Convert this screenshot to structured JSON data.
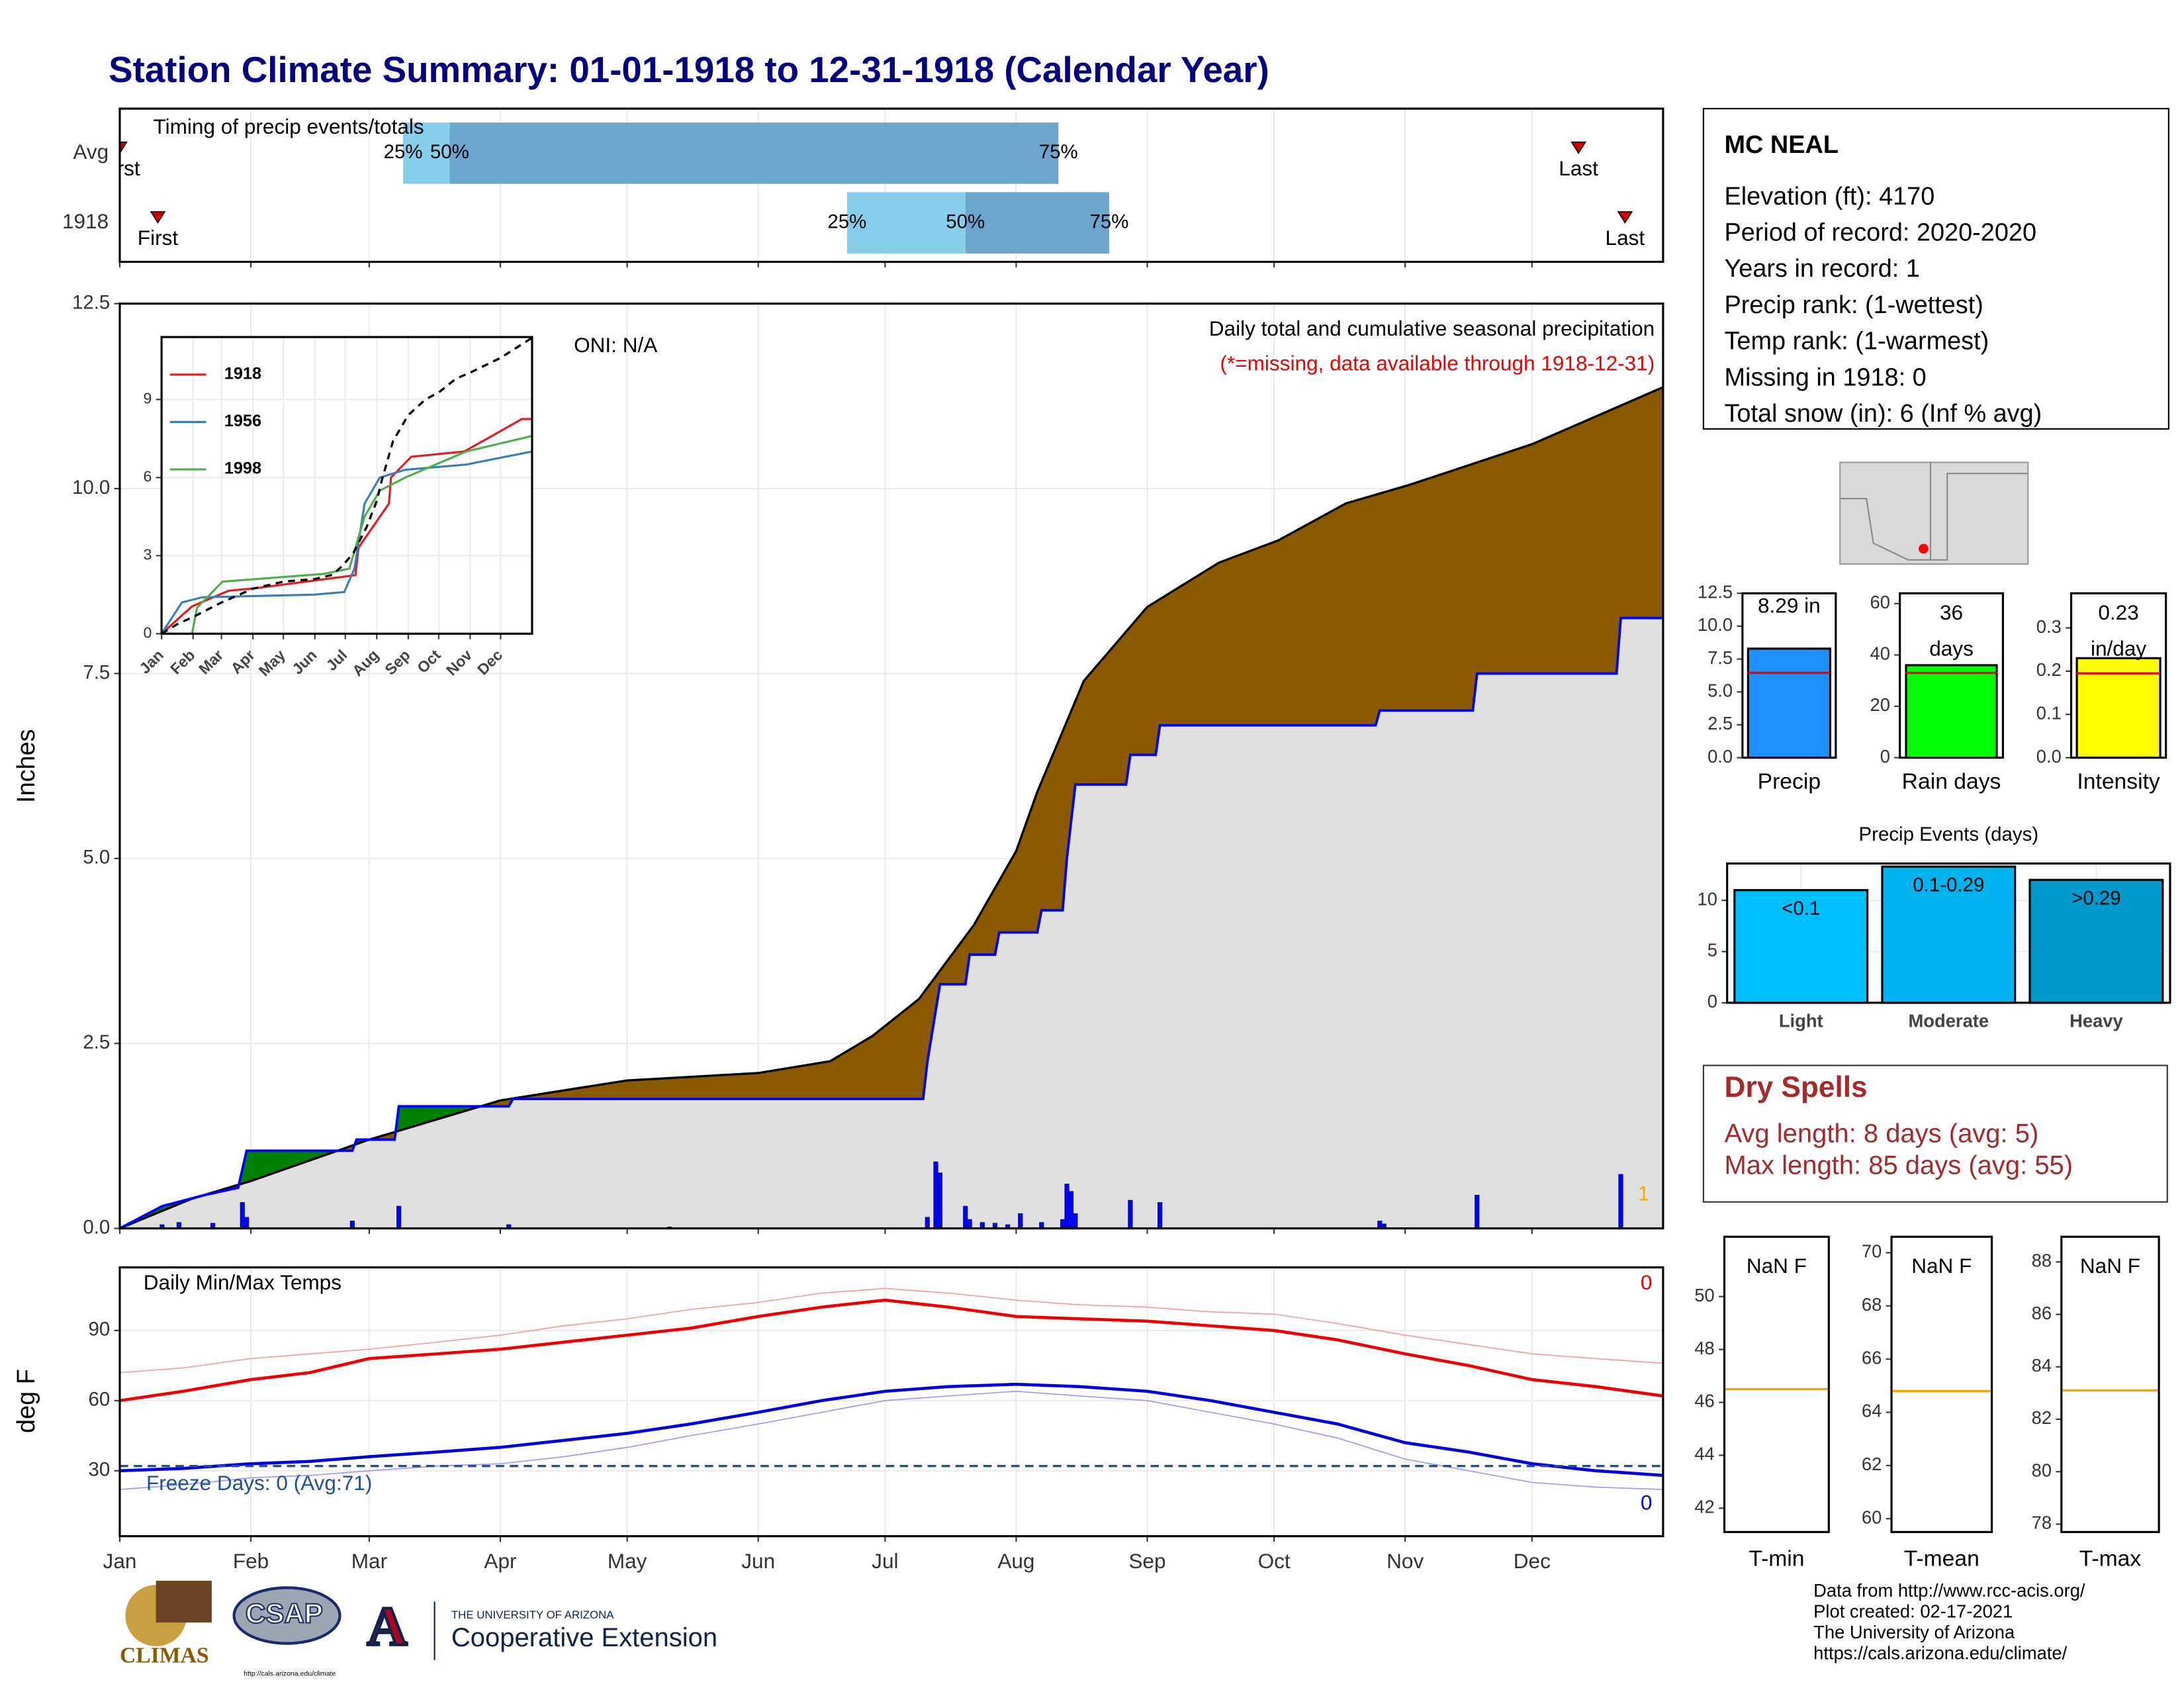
{
  "title": "Station Climate Summary: 01-01-1918 to 12-31-1918 (Calendar Year)",
  "station": {
    "name": "MC NEAL",
    "lines": [
      "Elevation (ft): 4170",
      "Period of record: 2020-2020",
      "Years in record: 1",
      "Precip rank:  (1-wettest)",
      "Temp rank:  (1-warmest)",
      "Missing in 1918: 0",
      "Total snow (in): 6 (Inf % avg)"
    ]
  },
  "dry_spells": {
    "title": "Dry Spells",
    "lines": [
      "Avg length: 8 days (avg: 5)",
      "Max length: 85 days (avg: 55)"
    ]
  },
  "credits": [
    "Data from http://www.rcc-acis.org/",
    "Plot created: 02-17-2021",
    "The University of Arizona",
    "https://cals.arizona.edu/climate/"
  ],
  "logos": {
    "climas": "CLIMAS",
    "csap": "CSAP",
    "csap_url": "http://cals.arizona.edu/climate",
    "ua": "THE UNIVERSITY OF ARIZONA",
    "coop": "Cooperative Extension"
  },
  "chart_data": [
    {
      "type": "timing",
      "title": "Timing of precip events/totals",
      "xlim": [
        0,
        365
      ],
      "rows": [
        {
          "name": "Avg",
          "first": 0,
          "q25": 67,
          "q50": 78,
          "q75": 222,
          "last": 345
        },
        {
          "name": "1918",
          "first": 9,
          "q25": 172,
          "q50": 200,
          "q75": 234,
          "last": 356
        }
      ],
      "marker_labels": {
        "first": "First",
        "last": "Last"
      },
      "quantile_labels": {
        "q25": "25%",
        "q50": "50%",
        "q75": "75%"
      },
      "colors": {
        "early": "#87ceeb",
        "late": "#6ca6cd",
        "marker": "#cc0000"
      }
    },
    {
      "type": "cumulative",
      "y_label": "Inches",
      "xlim": [
        0,
        365
      ],
      "ylim": [
        0,
        12.5
      ],
      "yticks": [
        {
          "value": 0,
          "label": "0.0"
        },
        {
          "value": 2.5,
          "label": "2.5"
        },
        {
          "value": 5,
          "label": "5.0"
        },
        {
          "value": 7.5,
          "label": "7.5"
        },
        {
          "value": 10,
          "label": "10.0"
        },
        {
          "value": 12.5,
          "label": "12.5"
        }
      ],
      "xticks": [
        0,
        31,
        59,
        90,
        120,
        151,
        181,
        212,
        243,
        273,
        304,
        334
      ],
      "grid": true,
      "oni": "ONI: N/A",
      "subtitle": "Daily total and cumulative seasonal precipitation",
      "note": "(*=missing, data available through 1918-12-31)",
      "snow_label": "1",
      "observed": {
        "color": "#0000ff",
        "x": [
          0,
          10,
          20,
          28,
          30,
          55,
          56,
          65,
          66,
          92,
          93,
          190,
          191,
          194,
          200,
          201,
          207,
          208,
          217,
          218,
          223,
          224,
          225,
          226,
          238,
          239,
          245,
          246,
          297,
          298,
          320,
          321,
          354,
          355,
          365
        ],
        "values": [
          0,
          0.3,
          0.45,
          0.55,
          1.05,
          1.05,
          1.2,
          1.2,
          1.65,
          1.65,
          1.75,
          1.75,
          2.25,
          3.3,
          3.3,
          3.7,
          3.7,
          4.0,
          4.0,
          4.3,
          4.3,
          5.0,
          5.5,
          6.0,
          6.0,
          6.4,
          6.4,
          6.8,
          6.8,
          7.0,
          7.0,
          7.5,
          7.5,
          8.25,
          8.25
        ]
      },
      "average": {
        "color": "#000000",
        "x": [
          0,
          17,
          31,
          59,
          90,
          120,
          151,
          168,
          178,
          189,
          202,
          212,
          217,
          228,
          243,
          260,
          274,
          290,
          305,
          334,
          365
        ],
        "values": [
          0,
          0.4,
          0.64,
          1.2,
          1.73,
          2.0,
          2.1,
          2.26,
          2.6,
          3.1,
          4.1,
          5.1,
          5.9,
          7.4,
          8.4,
          9.0,
          9.3,
          9.8,
          10.05,
          10.6,
          11.37
        ]
      },
      "daily": {
        "color": "#0000ff",
        "x": [
          10,
          14,
          22,
          29,
          30,
          55,
          66,
          92,
          130,
          191,
          193,
          194,
          200,
          201,
          204,
          207,
          210,
          213,
          218,
          223,
          224,
          225,
          226,
          239,
          246,
          298,
          299,
          321,
          355
        ],
        "values": [
          0.05,
          0.08,
          0.07,
          0.35,
          0.15,
          0.1,
          0.3,
          0.05,
          0.02,
          0.15,
          0.9,
          0.75,
          0.3,
          0.12,
          0.08,
          0.07,
          0.05,
          0.2,
          0.08,
          0.12,
          0.6,
          0.5,
          0.2,
          0.38,
          0.35,
          0.1,
          0.06,
          0.45,
          0.73
        ]
      },
      "colors": {
        "deficit": "#8b5a00",
        "surplus": "#008000",
        "base": "#e0e0e0"
      }
    },
    {
      "type": "line",
      "xlim": [
        0,
        365
      ],
      "ylim": [
        0,
        11.4
      ],
      "yticks": [
        0,
        3,
        6,
        9
      ],
      "xticks": [
        {
          "value": 0,
          "label": "Jan"
        },
        {
          "value": 31,
          "label": "Feb"
        },
        {
          "value": 59,
          "label": "Mar"
        },
        {
          "value": 90,
          "label": "Apr"
        },
        {
          "value": 120,
          "label": "May"
        },
        {
          "value": 151,
          "label": "Jun"
        },
        {
          "value": 181,
          "label": "Jul"
        },
        {
          "value": 212,
          "label": "Aug"
        },
        {
          "value": 243,
          "label": "Sep"
        },
        {
          "value": 273,
          "label": "Oct"
        },
        {
          "value": 304,
          "label": "Nov"
        },
        {
          "value": 334,
          "label": "Dec"
        }
      ],
      "series": [
        {
          "name": "1918",
          "color": "#e41a1c",
          "x": [
            0,
            30,
            66,
            93,
            191,
            194,
            201,
            224,
            226,
            246,
            298,
            321,
            355,
            365
          ],
          "values": [
            0,
            1.05,
            1.65,
            1.75,
            2.25,
            3.3,
            3.7,
            5.0,
            6.0,
            6.8,
            7.0,
            7.5,
            8.25,
            8.25
          ]
        },
        {
          "name": "1956",
          "color": "#377eb8",
          "x": [
            0,
            20,
            40,
            150,
            180,
            190,
            200,
            215,
            240,
            300,
            365
          ],
          "values": [
            0,
            1.2,
            1.4,
            1.5,
            1.6,
            2.5,
            5.0,
            6.0,
            6.3,
            6.5,
            7.0
          ]
        },
        {
          "name": "1998",
          "color": "#4daf4a",
          "x": [
            0,
            30,
            35,
            60,
            160,
            185,
            200,
            215,
            240,
            300,
            365
          ],
          "values": [
            0,
            0,
            1.0,
            2.0,
            2.3,
            2.5,
            4.5,
            5.5,
            6.0,
            7.0,
            7.6
          ]
        }
      ],
      "average": {
        "color": "#000000",
        "x": [
          0,
          17,
          31,
          59,
          90,
          120,
          151,
          168,
          178,
          189,
          202,
          212,
          217,
          228,
          243,
          260,
          274,
          290,
          305,
          334,
          365
        ],
        "values": [
          0,
          0.4,
          0.64,
          1.2,
          1.73,
          2.0,
          2.1,
          2.26,
          2.6,
          3.1,
          4.1,
          5.1,
          5.9,
          7.4,
          8.4,
          9.0,
          9.3,
          9.8,
          10.05,
          10.6,
          11.37
        ]
      }
    },
    {
      "type": "temps",
      "title": "Daily Min/Max Temps",
      "y_label": "deg F",
      "xlim": [
        0,
        365
      ],
      "ylim": [
        2,
        117
      ],
      "yticks": [
        30,
        60,
        90
      ],
      "xticks": [
        {
          "value": 0,
          "label": "Jan"
        },
        {
          "value": 31,
          "label": "Feb"
        },
        {
          "value": 59,
          "label": "Mar"
        },
        {
          "value": 90,
          "label": "Apr"
        },
        {
          "value": 120,
          "label": "May"
        },
        {
          "value": 151,
          "label": "Jun"
        },
        {
          "value": 181,
          "label": "Jul"
        },
        {
          "value": 212,
          "label": "Aug"
        },
        {
          "value": 243,
          "label": "Sep"
        },
        {
          "value": 273,
          "label": "Oct"
        },
        {
          "value": 304,
          "label": "Nov"
        },
        {
          "value": 334,
          "label": "Dec"
        }
      ],
      "freeze_line": 32,
      "freeze_text": "Freeze Days: 0 (Avg:71)",
      "max_missing": "0",
      "min_missing": "0",
      "x": [
        0,
        15,
        31,
        45,
        59,
        75,
        90,
        105,
        120,
        135,
        151,
        166,
        181,
        196,
        212,
        227,
        243,
        258,
        273,
        288,
        304,
        319,
        334,
        349,
        365
      ],
      "series": [
        {
          "color": "#ff9999",
          "width": 0.8,
          "values": [
            72,
            74,
            78,
            80,
            82,
            85,
            88,
            92,
            95,
            99,
            102,
            106,
            108,
            106,
            103,
            101,
            100,
            98,
            97,
            93,
            88,
            84,
            80,
            78,
            76
          ]
        },
        {
          "color": "#ee0000",
          "width": 2.2,
          "values": [
            60,
            64,
            69,
            72,
            78,
            80,
            82,
            85,
            88,
            91,
            96,
            100,
            103,
            100,
            96,
            95,
            94,
            92,
            90,
            86,
            80,
            75,
            69,
            66,
            62
          ]
        },
        {
          "color": "#9999ff",
          "width": 0.8,
          "values": [
            22,
            24,
            27,
            28,
            30,
            32,
            33,
            36,
            40,
            45,
            50,
            55,
            60,
            62,
            64,
            62,
            60,
            55,
            50,
            44,
            35,
            30,
            25,
            23,
            22
          ]
        },
        {
          "color": "#0000dd",
          "width": 2.2,
          "values": [
            30,
            31,
            33,
            34,
            36,
            38,
            40,
            43,
            46,
            50,
            55,
            60,
            64,
            66,
            67,
            66,
            64,
            60,
            55,
            50,
            42,
            38,
            33,
            30,
            28
          ]
        }
      ]
    },
    {
      "type": "bar",
      "categories": [
        "Precip"
      ],
      "values": [
        8.29
      ],
      "value_labels": [
        "8.29 in"
      ],
      "average": 6.45,
      "color": "#1e90ff",
      "ylim": [
        0,
        12.5
      ],
      "yticks": [
        {
          "value": 0,
          "label": "0.0"
        },
        {
          "value": 2.5,
          "label": "2.5"
        },
        {
          "value": 5,
          "label": "5.0"
        },
        {
          "value": 7.5,
          "label": "7.5"
        },
        {
          "value": 10,
          "label": "10.0"
        },
        {
          "value": 12.5,
          "label": "12.5"
        }
      ]
    },
    {
      "type": "bar",
      "categories": [
        "Rain days"
      ],
      "values": [
        36
      ],
      "value_labels": [
        "36 days"
      ],
      "average": 33,
      "color": "#00ff00",
      "ylim": [
        0,
        64
      ],
      "yticks": [
        0,
        20,
        40,
        60
      ]
    },
    {
      "type": "bar",
      "categories": [
        "Intensity"
      ],
      "values": [
        0.23
      ],
      "value_labels": [
        "0.23 in/day"
      ],
      "average": 0.195,
      "color": "#ffff00",
      "ylim": [
        0,
        0.38
      ],
      "yticks": [
        {
          "value": 0,
          "label": "0.0"
        },
        0.1,
        0.2,
        0.3
      ]
    },
    {
      "type": "bar",
      "title": "Precip Events (days)",
      "categories": [
        "Light",
        "Moderate",
        "Heavy"
      ],
      "values": [
        11,
        13.3,
        12
      ],
      "bin_labels": [
        "<0.1",
        "0.1-0.29",
        ">0.29"
      ],
      "colors": [
        "#00bfff",
        "#00b2ee",
        "#009acd"
      ],
      "ylim": [
        0,
        13.6
      ],
      "yticks": [
        0,
        5,
        10
      ],
      "grid": true
    },
    {
      "type": "level",
      "categories": [
        "T-min"
      ],
      "value_labels": [
        "NaN F"
      ],
      "average": 46.5,
      "color": "#ffa500",
      "ylim": [
        41.1,
        52.26
      ],
      "yticks": [
        42,
        44,
        46,
        48,
        50
      ]
    },
    {
      "type": "level",
      "categories": [
        "T-mean"
      ],
      "value_labels": [
        "NaN F"
      ],
      "average": 64.8,
      "color": "#ffa500",
      "ylim": [
        59.5,
        70.6
      ],
      "yticks": [
        60,
        62,
        64,
        66,
        68,
        70
      ]
    },
    {
      "type": "level",
      "categories": [
        "T-max"
      ],
      "value_labels": [
        "NaN F"
      ],
      "average": 83.1,
      "color": "#ffa500",
      "ylim": [
        77.7,
        88.96
      ],
      "yticks": [
        78,
        80,
        82,
        84,
        86,
        88
      ]
    }
  ]
}
